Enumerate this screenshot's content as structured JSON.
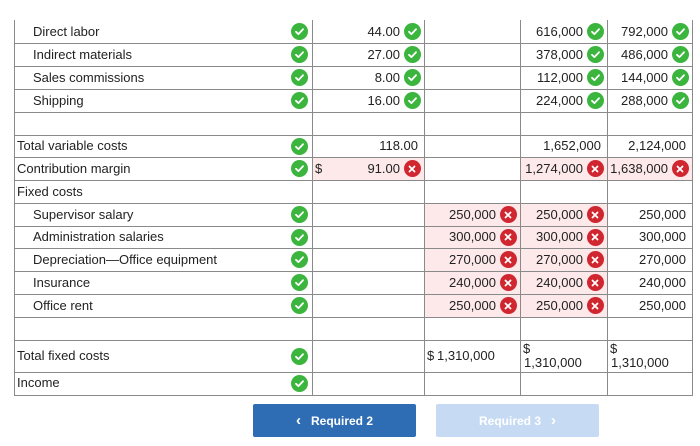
{
  "rows": [
    {
      "key": "direct_labor",
      "label": "Direct labor",
      "indent": true,
      "status": "ok",
      "per_unit": {
        "value": "44.00",
        "status": "ok"
      },
      "fixed": null,
      "c4": {
        "value": "616,000",
        "status": "ok"
      },
      "c5": {
        "value": "792,000",
        "status": "ok"
      }
    },
    {
      "key": "indirect_materials",
      "label": "Indirect materials",
      "indent": true,
      "status": "ok",
      "per_unit": {
        "value": "27.00",
        "status": "ok"
      },
      "fixed": null,
      "c4": {
        "value": "378,000",
        "status": "ok"
      },
      "c5": {
        "value": "486,000",
        "status": "ok"
      }
    },
    {
      "key": "sales_commissions",
      "label": "Sales commissions",
      "indent": true,
      "status": "ok",
      "per_unit": {
        "value": "8.00",
        "status": "ok"
      },
      "fixed": null,
      "c4": {
        "value": "112,000",
        "status": "ok"
      },
      "c5": {
        "value": "144,000",
        "status": "ok"
      }
    },
    {
      "key": "shipping",
      "label": "Shipping",
      "indent": true,
      "status": "ok",
      "per_unit": {
        "value": "16.00",
        "status": "ok"
      },
      "fixed": null,
      "c4": {
        "value": "224,000",
        "status": "ok"
      },
      "c5": {
        "value": "288,000",
        "status": "ok"
      }
    },
    {
      "key": "blank_1",
      "label": "",
      "indent": false,
      "status": null,
      "per_unit": null,
      "fixed": null,
      "c4": null,
      "c5": null
    },
    {
      "key": "total_variable_costs",
      "label": "Total variable costs",
      "indent": false,
      "status": "ok",
      "per_unit": {
        "value": "118.00",
        "status": null
      },
      "fixed": null,
      "c4": {
        "value": "1,652,000",
        "status": null
      },
      "c5": {
        "value": "2,124,000",
        "status": null
      }
    },
    {
      "key": "contribution_margin",
      "label": "Contribution margin",
      "indent": false,
      "status": "ok",
      "per_unit": {
        "value": "91.00",
        "status": "bad",
        "dollar": "$"
      },
      "fixed": null,
      "c4": {
        "value": "1,274,000",
        "status": "bad"
      },
      "c5": {
        "value": "1,638,000",
        "status": "bad"
      }
    },
    {
      "key": "fixed_costs",
      "label": "Fixed costs",
      "indent": false,
      "status": null,
      "per_unit": null,
      "fixed": null,
      "c4": null,
      "c5": null
    },
    {
      "key": "supervisor_salary",
      "label": "Supervisor salary",
      "indent": true,
      "status": "ok",
      "per_unit": null,
      "fixed": {
        "value": "250,000",
        "status": "bad"
      },
      "c4": {
        "value": "250,000",
        "status": "bad"
      },
      "c5": {
        "value": "250,000",
        "status": null
      }
    },
    {
      "key": "administration_salaries",
      "label": "Administration salaries",
      "indent": true,
      "status": "ok",
      "per_unit": null,
      "fixed": {
        "value": "300,000",
        "status": "bad"
      },
      "c4": {
        "value": "300,000",
        "status": "bad"
      },
      "c5": {
        "value": "300,000",
        "status": null
      }
    },
    {
      "key": "depreciation_office_equipment",
      "label": "Depreciation—Office equipment",
      "indent": true,
      "status": "ok",
      "per_unit": null,
      "fixed": {
        "value": "270,000",
        "status": "bad"
      },
      "c4": {
        "value": "270,000",
        "status": "bad"
      },
      "c5": {
        "value": "270,000",
        "status": null
      }
    },
    {
      "key": "insurance",
      "label": "Insurance",
      "indent": true,
      "status": "ok",
      "per_unit": null,
      "fixed": {
        "value": "240,000",
        "status": "bad"
      },
      "c4": {
        "value": "240,000",
        "status": "bad"
      },
      "c5": {
        "value": "240,000",
        "status": null
      }
    },
    {
      "key": "office_rent",
      "label": "Office rent",
      "indent": true,
      "status": "ok",
      "per_unit": null,
      "fixed": {
        "value": "250,000",
        "status": "bad"
      },
      "c4": {
        "value": "250,000",
        "status": "bad"
      },
      "c5": {
        "value": "250,000",
        "status": null
      }
    },
    {
      "key": "blank_2",
      "label": "",
      "indent": false,
      "status": null,
      "per_unit": null,
      "fixed": null,
      "c4": null,
      "c5": null
    },
    {
      "key": "total_fixed_costs",
      "label": "Total fixed costs",
      "indent": false,
      "status": "ok",
      "per_unit": null,
      "fixed": {
        "value": "1,310,000",
        "status": null,
        "dollar": "$"
      },
      "c4": {
        "value": "1,310,000",
        "status": null,
        "dollar": "$"
      },
      "c5": {
        "value": "1,310,000",
        "status": null,
        "dollar": "$"
      }
    },
    {
      "key": "income",
      "label": "Income",
      "indent": false,
      "status": "ok",
      "per_unit": null,
      "fixed": null,
      "c4": null,
      "c5": null
    }
  ],
  "nav": {
    "prev_label": "Required 2",
    "next_label": "Required 3"
  },
  "colors": {
    "ok": "#3bb53e",
    "bad": "#d0262f",
    "incorrect_cell_bg": "#fde9ea",
    "primary_button": "#2e6db4",
    "disabled_button": "#c6dbf3"
  },
  "icons": {
    "ok": "check-circle-icon",
    "bad": "x-circle-icon",
    "prev": "chevron-left-icon",
    "next": "chevron-right-icon"
  }
}
